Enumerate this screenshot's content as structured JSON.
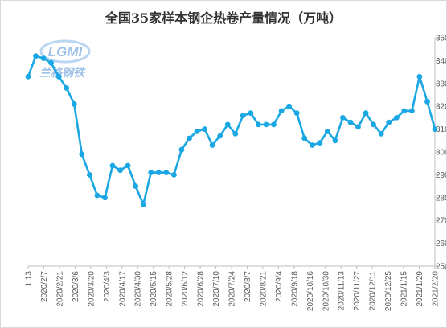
{
  "chart_data": {
    "type": "line",
    "title": "全国35家样本钢企热卷产量情况（万吨）",
    "xlabel": "",
    "ylabel": "",
    "ylim": [
      250,
      350
    ],
    "yticks": [
      250,
      260,
      270,
      280,
      290,
      300,
      310,
      320,
      330,
      340,
      350
    ],
    "grid": false,
    "legend": "none",
    "axis_side": "right",
    "line_color": "#1aa7e3",
    "x_tick_labels": [
      "1.13",
      "2020/2/7",
      "2020/2/21",
      "2020/3/6",
      "2020/3/20",
      "2020/4/3",
      "2020/4/17",
      "2020/4/30",
      "2020/5/15",
      "2020/5/28",
      "2020/6/12",
      "2020/6/28",
      "2020/7/10",
      "2020/7/24",
      "2020/8/7",
      "2020/8/21",
      "2020/9/4",
      "2020/9/18",
      "2020/10/16",
      "2020/10/30",
      "2020/11/13",
      "2020/11/27",
      "2020/12/11",
      "2020/12/25",
      "2021/1/15",
      "2021/1/29",
      "2021/2/20"
    ],
    "values": [
      333,
      342,
      341,
      339,
      333,
      328,
      321,
      299,
      290,
      281,
      280,
      294,
      292,
      294,
      285,
      277,
      291,
      291,
      291,
      290,
      301,
      306,
      309,
      310,
      303,
      307,
      312,
      308,
      316,
      317,
      312,
      312,
      312,
      318,
      320,
      317,
      306,
      303,
      304,
      309,
      305,
      315,
      313,
      311,
      317,
      312,
      308,
      313,
      315,
      318,
      318,
      333,
      322,
      310
    ]
  },
  "watermark": {
    "logo_text": "LGMI",
    "cn_text": "兰格钢铁"
  }
}
